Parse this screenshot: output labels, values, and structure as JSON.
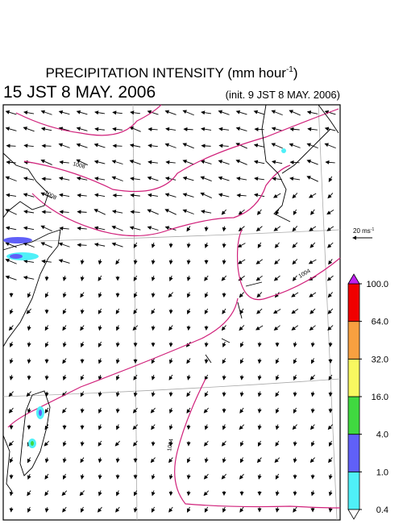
{
  "header": {
    "title": {
      "text": "PRECIPITATION INTENSITY (mm hour",
      "superscript": "-1",
      "end": ")"
    },
    "valid_time": "15 JST 8 MAY. 2006",
    "init_time": "(init. 9 JST 8 MAY. 2006)"
  },
  "reference_vector": {
    "text": "20 ms",
    "superscript": "-1"
  },
  "contour_labels": [
    "1008",
    "1008",
    "1004",
    "1004"
  ],
  "colorbar": {
    "ticks": [
      {
        "value": 0.4,
        "label": "0.4"
      },
      {
        "value": 1,
        "label": "1.0"
      },
      {
        "value": 4,
        "label": "4.0"
      },
      {
        "value": 16,
        "label": "16.0"
      },
      {
        "value": 32,
        "label": "32.0"
      },
      {
        "value": 64,
        "label": "64.0"
      },
      {
        "value": 100,
        "label": "100.0"
      }
    ],
    "colors": [
      "#4ff0f8",
      "#6060f8",
      "#40d840",
      "#f8f860",
      "#f8a040",
      "#f00000"
    ],
    "over_color": "#c020f0",
    "under_color": "#ffffff"
  }
}
